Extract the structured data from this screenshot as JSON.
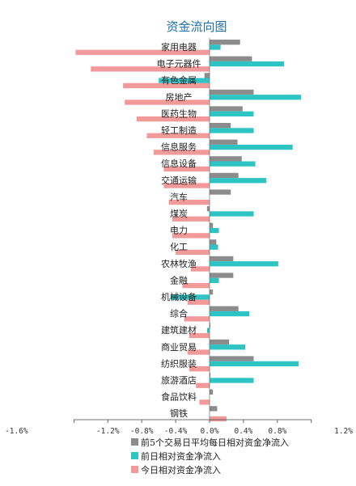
{
  "chart_data": {
    "type": "bar",
    "orientation": "horizontal",
    "title": "资金流向图",
    "categories": [
      "家用电器",
      "电子元器件",
      "有色金属",
      "房地产",
      "医药生物",
      "轻工制造",
      "信息服务",
      "信息设备",
      "交通运输",
      "汽车",
      "煤炭",
      "电力",
      "化工",
      "农林牧渔",
      "金融",
      "机械设备",
      "综合",
      "建筑建材",
      "商业贸易",
      "纺织服装",
      "旅游酒店",
      "食品饮料",
      "钢铁"
    ],
    "series": [
      {
        "name": "前5个交易日平均每日相对资金净流入",
        "color": "#8c8c8c",
        "values": [
          0.36,
          0.5,
          -0.06,
          0.52,
          0.39,
          0.25,
          0.33,
          0.38,
          0.34,
          0.25,
          -0.03,
          0.04,
          0.08,
          0.28,
          0.28,
          0.04,
          0.34,
          0.01,
          0.23,
          0.52,
          0.01,
          0.04,
          0.09
        ]
      },
      {
        "name": "前日相对资金净流入",
        "color": "#2ec4c4",
        "values": [
          0.13,
          0.88,
          -0.6,
          1.08,
          0.52,
          0.52,
          0.98,
          0.54,
          0.67,
          0.0,
          0.52,
          0.11,
          0.1,
          0.81,
          0.11,
          -0.46,
          0.47,
          -0.03,
          0.42,
          1.05,
          0.52,
          0.0,
          0.0
        ]
      },
      {
        "name": "今日相对资金净流入",
        "color": "#f29a9a",
        "values": [
          -1.58,
          -1.4,
          -1.02,
          -1.0,
          -0.86,
          -0.74,
          -0.66,
          -0.54,
          -0.54,
          -0.48,
          -0.44,
          -0.44,
          -0.4,
          -0.22,
          -0.32,
          -0.26,
          -0.3,
          -0.24,
          -0.26,
          -0.24,
          -0.16,
          -0.12,
          0.2
        ]
      }
    ],
    "xlim": [
      -1.6,
      1.2
    ],
    "xticks": [
      "-1.6%",
      "-1.2%",
      "-0.8%",
      "-0.4%",
      "0.0%",
      "0.4%",
      "0.8%",
      "1.2%"
    ],
    "xtick_values": [
      -1.6,
      -1.2,
      -0.8,
      -0.4,
      0.0,
      0.4,
      0.8,
      1.2
    ],
    "xlabel": "",
    "ylabel": "",
    "grid": false,
    "legend_position": "bottom"
  }
}
